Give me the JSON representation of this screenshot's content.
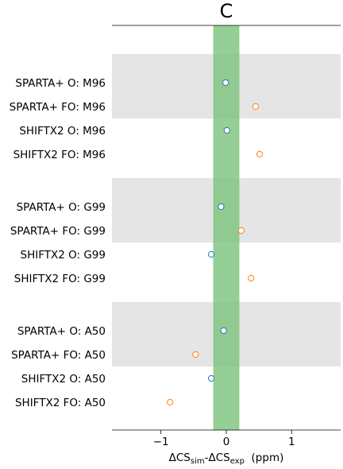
{
  "chart_data": {
    "type": "scatter",
    "title": "C",
    "xlabel_main": "ΔCS",
    "xlabel_sub1": "sim",
    "xlabel_mid": "-ΔCS",
    "xlabel_sub2": "exp",
    "xlabel_unit": "  (ppm)",
    "xlim": [
      -1.75,
      1.75
    ],
    "xticks": [
      {
        "value": -1,
        "label": "−1"
      },
      {
        "value": 0,
        "label": "0"
      },
      {
        "value": 1,
        "label": "1"
      }
    ],
    "band": {
      "from": -0.2,
      "to": 0.2,
      "color": "#7ac37a"
    },
    "shaded_groups": [
      [
        0,
        1
      ],
      [
        4,
        5
      ],
      [
        8,
        9
      ]
    ],
    "colors": {
      "O": "#1f77b4",
      "FO": "#ff7f0e",
      "shade": "#e5e5e5"
    },
    "rows": [
      {
        "label": "SPARTA+ O:  M96",
        "x": -0.01,
        "kind": "O"
      },
      {
        "label": "SPARTA+ FO:  M96",
        "x": 0.45,
        "kind": "FO"
      },
      {
        "label": "SHIFTX2 O:  M96",
        "x": 0.01,
        "kind": "O"
      },
      {
        "label": "SHIFTX2 FO:  M96",
        "x": 0.51,
        "kind": "FO"
      },
      {
        "label": "SPARTA+ O:  G99",
        "x": -0.08,
        "kind": "O"
      },
      {
        "label": "SPARTA+ FO:  G99",
        "x": 0.23,
        "kind": "FO"
      },
      {
        "label": "SHIFTX2 O:  G99",
        "x": -0.23,
        "kind": "O"
      },
      {
        "label": "SHIFTX2 FO:  G99",
        "x": 0.38,
        "kind": "FO"
      },
      {
        "label": "SPARTA+ O:  A50",
        "x": -0.04,
        "kind": "O"
      },
      {
        "label": "SPARTA+ FO:  A50",
        "x": -0.47,
        "kind": "FO"
      },
      {
        "label": "SHIFTX2 O:  A50",
        "x": -0.23,
        "kind": "O"
      },
      {
        "label": "SHIFTX2 FO:  A50",
        "x": -0.86,
        "kind": "FO"
      }
    ]
  }
}
